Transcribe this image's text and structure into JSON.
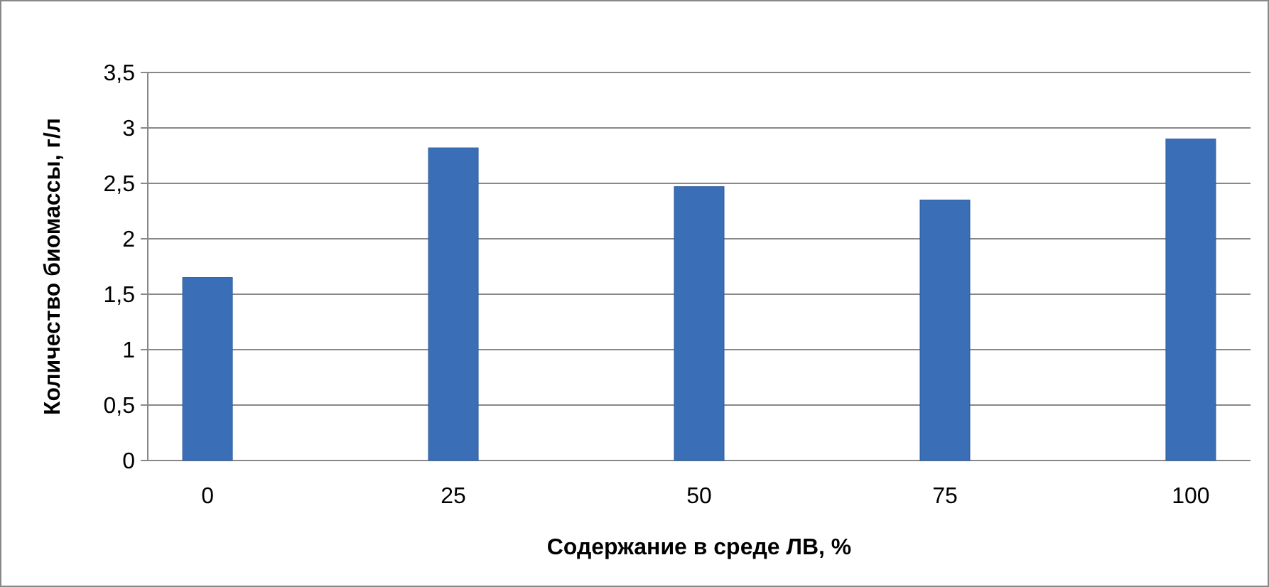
{
  "chart_data": {
    "type": "bar",
    "xlabel": "Содержание в среде ЛВ, %",
    "ylabel": "Количество биомассы, г/л",
    "categories": [
      "0",
      "25",
      "50",
      "75",
      "100"
    ],
    "values": [
      1.65,
      2.82,
      2.47,
      2.35,
      2.9
    ],
    "color": "#3a6fb8",
    "ylim": [
      0,
      3.5
    ],
    "yticks": [
      0,
      {
        "value": 0.5,
        "label": "0,5"
      },
      1,
      {
        "value": 1.5,
        "label": "1,5"
      },
      2,
      {
        "value": 2.5,
        "label": "2,5"
      },
      3,
      {
        "value": 3.5,
        "label": "3,5"
      }
    ],
    "grid": "y"
  }
}
